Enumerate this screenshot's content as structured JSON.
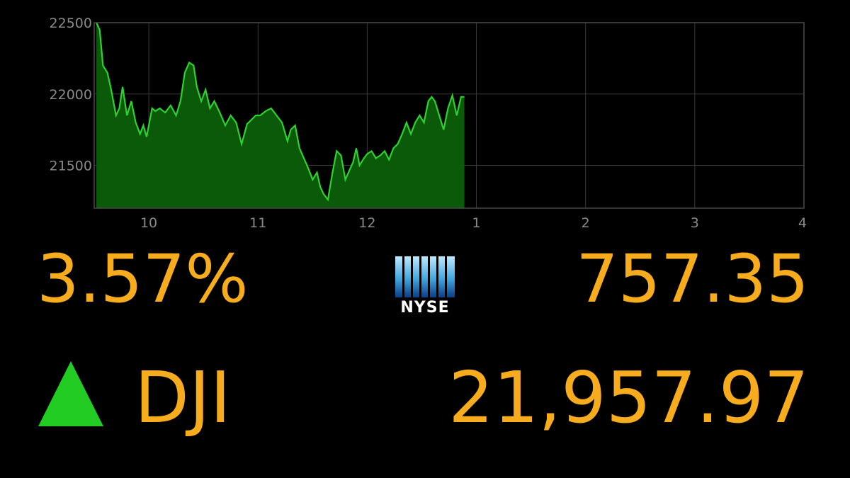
{
  "chart_data": {
    "type": "area",
    "title": "",
    "xlabel": "",
    "ylabel": "",
    "x_ticks": [
      {
        "value": 10,
        "label": "10"
      },
      {
        "value": 11,
        "label": "11"
      },
      {
        "value": 12,
        "label": "12"
      },
      {
        "value": 13,
        "label": "1"
      },
      {
        "value": 14,
        "label": "2"
      },
      {
        "value": 15,
        "label": "3"
      },
      {
        "value": 16,
        "label": "4"
      }
    ],
    "y_ticks": [
      {
        "value": 21500,
        "label": "21500"
      },
      {
        "value": 22000,
        "label": "22000"
      },
      {
        "value": 22500,
        "label": "22500"
      }
    ],
    "xlim": [
      9.5,
      16
    ],
    "ylim": [
      21200,
      22500
    ],
    "grid": true,
    "colors": {
      "line": "#2fd12f",
      "fill": "#0a5a0a",
      "grid": "#3a3a3a"
    },
    "series": [
      {
        "x": [
          9.52,
          9.55,
          9.58,
          9.62,
          9.65,
          9.7,
          9.73,
          9.76,
          9.8,
          9.84,
          9.88,
          9.92,
          9.95,
          9.98,
          10.0,
          10.03,
          10.06,
          10.1,
          10.15,
          10.2,
          10.25,
          10.29,
          10.33,
          10.37,
          10.41,
          10.44,
          10.48,
          10.52,
          10.56,
          10.6,
          10.65,
          10.7,
          10.75,
          10.8,
          10.85,
          10.9,
          10.94,
          10.98,
          11.02,
          11.07,
          11.12,
          11.17,
          11.22,
          11.27,
          11.3,
          11.34,
          11.38,
          11.42,
          11.46,
          11.5,
          11.54,
          11.57,
          11.6,
          11.64,
          11.68,
          11.72,
          11.76,
          11.8,
          11.84,
          11.87,
          11.9,
          11.93,
          11.97,
          12.0,
          12.04,
          12.08,
          12.12,
          12.16,
          12.2,
          12.24,
          12.28,
          12.32,
          12.36,
          12.4,
          12.44,
          12.48,
          12.52,
          12.56,
          12.59,
          12.62,
          12.66,
          12.7,
          12.74,
          12.78,
          12.82,
          12.86,
          12.89
        ],
        "values": [
          22500,
          22450,
          22200,
          22150,
          22050,
          21850,
          21900,
          22050,
          21850,
          21950,
          21800,
          21720,
          21780,
          21700,
          21780,
          21900,
          21880,
          21900,
          21870,
          21920,
          21850,
          21950,
          22150,
          22220,
          22200,
          22050,
          21950,
          22030,
          21900,
          21950,
          21870,
          21780,
          21850,
          21800,
          21650,
          21790,
          21820,
          21850,
          21850,
          21880,
          21900,
          21850,
          21800,
          21670,
          21750,
          21780,
          21620,
          21550,
          21480,
          21400,
          21450,
          21350,
          21300,
          21260,
          21440,
          21600,
          21570,
          21400,
          21470,
          21520,
          21620,
          21500,
          21550,
          21580,
          21600,
          21550,
          21570,
          21600,
          21540,
          21620,
          21650,
          21720,
          21800,
          21720,
          21800,
          21850,
          21800,
          21950,
          21980,
          21950,
          21850,
          21750,
          21900,
          21990,
          21850,
          21980,
          21980
        ]
      }
    ]
  },
  "tiles": {
    "percent_change": "3.57%",
    "exchange_logo": "NYSE",
    "exchange_points": "757.35",
    "ticker": "DJI",
    "index_value": "21,957.97",
    "direction": "up",
    "arrow_color": "#22cc22",
    "value_color": "#f6ac1c"
  }
}
